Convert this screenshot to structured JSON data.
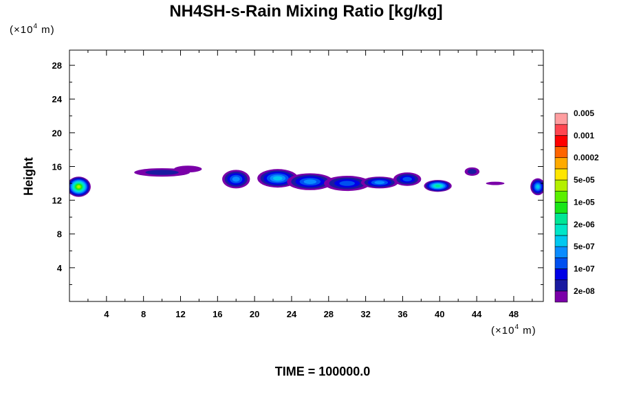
{
  "chart_data": {
    "type": "contour",
    "title": "NH4SH-s-Rain Mixing Ratio [kg/kg]",
    "ylabel": "Height",
    "xlabel": "",
    "x_unit": "(×10⁴ m)",
    "y_unit": "(×10⁴ m)",
    "unit_base": "(×10",
    "unit_exp": "4",
    "unit_tail": " m)",
    "xlim": [
      0,
      51.2
    ],
    "ylim": [
      0,
      29.8
    ],
    "x_ticks": [
      4,
      8,
      12,
      16,
      20,
      24,
      28,
      32,
      36,
      40,
      44,
      48
    ],
    "x_tick_labels": [
      "4",
      "8",
      "12",
      "16",
      "20",
      "24",
      "28",
      "32",
      "36",
      "40",
      "44",
      "48"
    ],
    "y_ticks": [
      4,
      8,
      12,
      16,
      20,
      24,
      28
    ],
    "y_tick_labels": [
      "4",
      "8",
      "12",
      "16",
      "20",
      "24",
      "28"
    ],
    "colorbar": {
      "colors": [
        "#7a00a8",
        "#1a1aa0",
        "#0000e6",
        "#0050f0",
        "#0a8cff",
        "#00c8f0",
        "#00e6c8",
        "#00e696",
        "#19e619",
        "#5af000",
        "#b4f000",
        "#ffe600",
        "#ffaa00",
        "#ff6400",
        "#ff0000",
        "#ff4650",
        "#ff9ea0"
      ],
      "labels": [
        "2e-08",
        "1e-07",
        "5e-07",
        "2e-06",
        "1e-05",
        "5e-05",
        "0.0002",
        "0.001",
        "0.005"
      ]
    },
    "features": [
      {
        "x": 1.0,
        "y": 13.6,
        "rx": 1.3,
        "ry": 1.2,
        "level": 10
      },
      {
        "x": 50.6,
        "y": 13.6,
        "rx": 0.8,
        "ry": 1.0,
        "level": 5
      },
      {
        "x": 10.0,
        "y": 15.3,
        "rx": 3.0,
        "ry": 0.5,
        "level": 1
      },
      {
        "x": 12.8,
        "y": 15.7,
        "rx": 1.5,
        "ry": 0.4,
        "level": 0
      },
      {
        "x": 18.0,
        "y": 14.5,
        "rx": 1.5,
        "ry": 1.1,
        "level": 4
      },
      {
        "x": 22.5,
        "y": 14.6,
        "rx": 2.2,
        "ry": 1.1,
        "level": 5
      },
      {
        "x": 26.0,
        "y": 14.2,
        "rx": 2.5,
        "ry": 1.0,
        "level": 4
      },
      {
        "x": 30.0,
        "y": 14.0,
        "rx": 2.5,
        "ry": 0.9,
        "level": 3
      },
      {
        "x": 33.5,
        "y": 14.1,
        "rx": 2.0,
        "ry": 0.7,
        "level": 4
      },
      {
        "x": 36.5,
        "y": 14.5,
        "rx": 1.5,
        "ry": 0.8,
        "level": 3
      },
      {
        "x": 39.8,
        "y": 13.7,
        "rx": 1.5,
        "ry": 0.7,
        "level": 7
      },
      {
        "x": 43.5,
        "y": 15.4,
        "rx": 0.8,
        "ry": 0.5,
        "level": 1
      },
      {
        "x": 46.0,
        "y": 14.0,
        "rx": 1.0,
        "ry": 0.2,
        "level": 0
      }
    ],
    "grid": false,
    "legend": "right"
  },
  "time_label": "TIME = 100000.0"
}
